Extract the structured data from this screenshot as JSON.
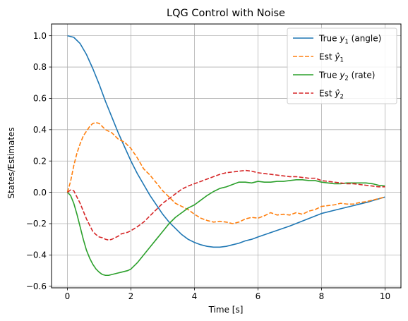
{
  "chart_data": {
    "type": "line",
    "title": "LQG Control with Noise",
    "xlabel": "Time [s]",
    "ylabel": "States/Estimates",
    "xlim": [
      -0.5,
      10.5
    ],
    "ylim": [
      -0.61,
      1.075
    ],
    "xticks": [
      0,
      2,
      4,
      6,
      8,
      10
    ],
    "xtick_labels": [
      "0",
      "2",
      "4",
      "6",
      "8",
      "10"
    ],
    "yticks": [
      -0.6,
      -0.4,
      -0.2,
      0.0,
      0.2,
      0.4,
      0.6,
      0.8,
      1.0
    ],
    "ytick_labels": [
      "−0.6",
      "−0.4",
      "−0.2",
      "0.0",
      "0.2",
      "0.4",
      "0.6",
      "0.8",
      "1.0"
    ],
    "grid": true,
    "legend_position": "top-right",
    "series": [
      {
        "name": "True y1 (angle)",
        "legend_main": "True ",
        "legend_var": "y",
        "legend_sub": "1",
        "legend_suffix": " (angle)",
        "color": "#1f77b4",
        "dashed": false,
        "x": [
          0,
          0.2,
          0.4,
          0.6,
          0.8,
          1.0,
          1.2,
          1.4,
          1.6,
          1.8,
          2.0,
          2.2,
          2.4,
          2.6,
          2.8,
          3.0,
          3.2,
          3.4,
          3.6,
          3.8,
          4.0,
          4.2,
          4.4,
          4.6,
          4.8,
          5.0,
          5.2,
          5.4,
          5.6,
          5.8,
          6.0,
          6.5,
          7.0,
          7.5,
          8.0,
          8.5,
          9.0,
          9.5,
          10.0
        ],
        "y": [
          1.0,
          0.99,
          0.95,
          0.88,
          0.79,
          0.69,
          0.58,
          0.48,
          0.38,
          0.29,
          0.2,
          0.12,
          0.05,
          -0.02,
          -0.08,
          -0.14,
          -0.19,
          -0.23,
          -0.27,
          -0.3,
          -0.32,
          -0.335,
          -0.345,
          -0.35,
          -0.35,
          -0.345,
          -0.335,
          -0.325,
          -0.31,
          -0.3,
          -0.285,
          -0.25,
          -0.215,
          -0.175,
          -0.135,
          -0.11,
          -0.085,
          -0.06,
          -0.03
        ]
      },
      {
        "name": "Est ŷ1",
        "legend_main": "Est ",
        "legend_var": "ŷ",
        "legend_sub": "1",
        "legend_suffix": "",
        "color": "#ff7f0e",
        "dashed": true,
        "x": [
          0,
          0.1,
          0.2,
          0.3,
          0.4,
          0.5,
          0.6,
          0.7,
          0.8,
          0.9,
          1.0,
          1.1,
          1.2,
          1.3,
          1.4,
          1.5,
          1.6,
          1.7,
          1.8,
          1.9,
          2.0,
          2.2,
          2.4,
          2.6,
          2.8,
          3.0,
          3.2,
          3.4,
          3.6,
          3.8,
          4.0,
          4.2,
          4.4,
          4.6,
          4.8,
          5.0,
          5.2,
          5.4,
          5.6,
          5.8,
          6.0,
          6.2,
          6.4,
          6.6,
          6.8,
          7.0,
          7.2,
          7.4,
          7.6,
          7.8,
          8.0,
          8.2,
          8.4,
          8.6,
          8.8,
          9.0,
          9.2,
          9.4,
          9.6,
          9.8,
          10.0
        ],
        "y": [
          0.0,
          0.07,
          0.17,
          0.25,
          0.31,
          0.36,
          0.39,
          0.42,
          0.44,
          0.445,
          0.44,
          0.42,
          0.4,
          0.39,
          0.38,
          0.36,
          0.34,
          0.33,
          0.32,
          0.3,
          0.28,
          0.22,
          0.15,
          0.11,
          0.06,
          0.01,
          -0.03,
          -0.07,
          -0.09,
          -0.11,
          -0.14,
          -0.165,
          -0.18,
          -0.19,
          -0.185,
          -0.19,
          -0.2,
          -0.19,
          -0.17,
          -0.16,
          -0.165,
          -0.15,
          -0.13,
          -0.145,
          -0.14,
          -0.145,
          -0.13,
          -0.14,
          -0.12,
          -0.11,
          -0.09,
          -0.085,
          -0.08,
          -0.07,
          -0.075,
          -0.075,
          -0.065,
          -0.06,
          -0.05,
          -0.04,
          -0.03
        ]
      },
      {
        "name": "True y2 (rate)",
        "legend_main": "True ",
        "legend_var": "y",
        "legend_sub": "2",
        "legend_suffix": " (rate)",
        "color": "#2ca02c",
        "dashed": false,
        "x": [
          0,
          0.1,
          0.2,
          0.3,
          0.4,
          0.5,
          0.6,
          0.7,
          0.8,
          0.9,
          1.0,
          1.1,
          1.2,
          1.3,
          1.4,
          1.5,
          1.6,
          1.7,
          1.8,
          1.9,
          2.0,
          2.2,
          2.4,
          2.6,
          2.8,
          3.0,
          3.2,
          3.4,
          3.6,
          3.8,
          4.0,
          4.2,
          4.4,
          4.6,
          4.8,
          5.0,
          5.2,
          5.4,
          5.6,
          5.8,
          6.0,
          6.2,
          6.4,
          6.6,
          6.8,
          7.0,
          7.2,
          7.4,
          7.6,
          7.8,
          8.0,
          8.2,
          8.4,
          8.6,
          8.8,
          9.0,
          9.2,
          9.4,
          9.6,
          9.8,
          10.0
        ],
        "y": [
          0.0,
          -0.02,
          -0.07,
          -0.14,
          -0.22,
          -0.3,
          -0.37,
          -0.42,
          -0.46,
          -0.49,
          -0.51,
          -0.525,
          -0.53,
          -0.53,
          -0.525,
          -0.52,
          -0.515,
          -0.51,
          -0.505,
          -0.5,
          -0.49,
          -0.45,
          -0.4,
          -0.35,
          -0.3,
          -0.25,
          -0.2,
          -0.16,
          -0.13,
          -0.1,
          -0.08,
          -0.05,
          -0.02,
          0.005,
          0.025,
          0.035,
          0.05,
          0.065,
          0.065,
          0.06,
          0.07,
          0.065,
          0.065,
          0.07,
          0.07,
          0.075,
          0.08,
          0.08,
          0.075,
          0.075,
          0.065,
          0.06,
          0.055,
          0.055,
          0.06,
          0.06,
          0.06,
          0.06,
          0.055,
          0.045,
          0.04
        ]
      },
      {
        "name": "Est ŷ2",
        "legend_main": "Est ",
        "legend_var": "ŷ",
        "legend_sub": "2",
        "legend_suffix": "",
        "color": "#d62728",
        "dashed": true,
        "x": [
          0,
          0.1,
          0.2,
          0.3,
          0.4,
          0.5,
          0.6,
          0.7,
          0.8,
          0.9,
          1.0,
          1.1,
          1.2,
          1.3,
          1.4,
          1.5,
          1.6,
          1.7,
          1.8,
          1.9,
          2.0,
          2.2,
          2.4,
          2.6,
          2.8,
          3.0,
          3.2,
          3.4,
          3.6,
          3.8,
          4.0,
          4.2,
          4.4,
          4.6,
          4.8,
          5.0,
          5.2,
          5.4,
          5.6,
          5.8,
          6.0,
          6.2,
          6.4,
          6.6,
          6.8,
          7.0,
          7.2,
          7.4,
          7.6,
          7.8,
          8.0,
          8.2,
          8.4,
          8.6,
          8.8,
          9.0,
          9.2,
          9.4,
          9.6,
          9.8,
          10.0
        ],
        "y": [
          0.0,
          0.015,
          0.01,
          -0.03,
          -0.07,
          -0.12,
          -0.17,
          -0.21,
          -0.25,
          -0.27,
          -0.285,
          -0.29,
          -0.3,
          -0.305,
          -0.3,
          -0.29,
          -0.28,
          -0.265,
          -0.26,
          -0.255,
          -0.245,
          -0.22,
          -0.19,
          -0.15,
          -0.11,
          -0.07,
          -0.04,
          -0.01,
          0.02,
          0.04,
          0.055,
          0.07,
          0.085,
          0.1,
          0.115,
          0.125,
          0.13,
          0.135,
          0.14,
          0.135,
          0.125,
          0.12,
          0.115,
          0.11,
          0.105,
          0.1,
          0.1,
          0.095,
          0.09,
          0.09,
          0.075,
          0.07,
          0.065,
          0.06,
          0.055,
          0.055,
          0.05,
          0.045,
          0.04,
          0.035,
          0.035
        ]
      }
    ]
  }
}
